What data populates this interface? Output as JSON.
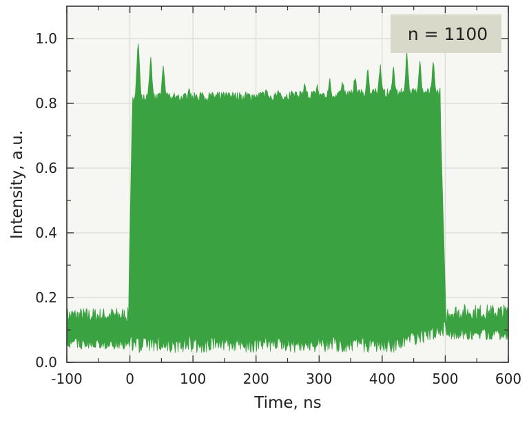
{
  "chart_data": {
    "type": "area",
    "title": "",
    "xlabel": "Time, ns",
    "ylabel": "Intensity, a.u.",
    "xlim": [
      -100,
      600
    ],
    "ylim": [
      0.0,
      1.1
    ],
    "grid": true,
    "x_ticks": [
      -100,
      0,
      100,
      200,
      300,
      400,
      500,
      600
    ],
    "x_tick_labels": [
      "-100",
      "0",
      "100",
      "200",
      "300",
      "400",
      "500",
      "600"
    ],
    "y_ticks": [
      0.0,
      0.2,
      0.4,
      0.6,
      0.8,
      1.0
    ],
    "y_tick_labels": [
      "0.0",
      "0.2",
      "0.4",
      "0.6",
      "0.8",
      "1.0"
    ],
    "legend": {
      "text": "n = 1100",
      "position": "upper right",
      "background": "#d9d9c9"
    },
    "series": [
      {
        "name": "intensity",
        "color": "#3aa241",
        "pulse_start_ns": 0,
        "pulse_end_ns": 500,
        "baseline_before": {
          "upper": 0.14,
          "lower": 0.04
        },
        "baseline_after": {
          "upper": 0.16,
          "lower": 0.07
        },
        "pulse_plateau_upper": 0.8,
        "pulse_plateau_lower": 0.03,
        "peaks": [
          {
            "t": 13,
            "v": 1.0
          },
          {
            "t": 33,
            "v": 0.95
          },
          {
            "t": 53,
            "v": 0.93
          },
          {
            "t": 76,
            "v": 0.82
          },
          {
            "t": 94,
            "v": 0.85
          },
          {
            "t": 115,
            "v": 0.84
          },
          {
            "t": 137,
            "v": 0.83
          },
          {
            "t": 155,
            "v": 0.82
          },
          {
            "t": 175,
            "v": 0.84
          },
          {
            "t": 198,
            "v": 0.84
          },
          {
            "t": 216,
            "v": 0.85
          },
          {
            "t": 236,
            "v": 0.85
          },
          {
            "t": 257,
            "v": 0.86
          },
          {
            "t": 277,
            "v": 0.87
          },
          {
            "t": 297,
            "v": 0.87
          },
          {
            "t": 317,
            "v": 0.88
          },
          {
            "t": 337,
            "v": 0.89
          },
          {
            "t": 357,
            "v": 0.9
          },
          {
            "t": 377,
            "v": 0.92
          },
          {
            "t": 397,
            "v": 0.93
          },
          {
            "t": 418,
            "v": 0.93
          },
          {
            "t": 439,
            "v": 0.97
          },
          {
            "t": 460,
            "v": 0.94
          },
          {
            "t": 481,
            "v": 0.95
          }
        ]
      }
    ]
  }
}
